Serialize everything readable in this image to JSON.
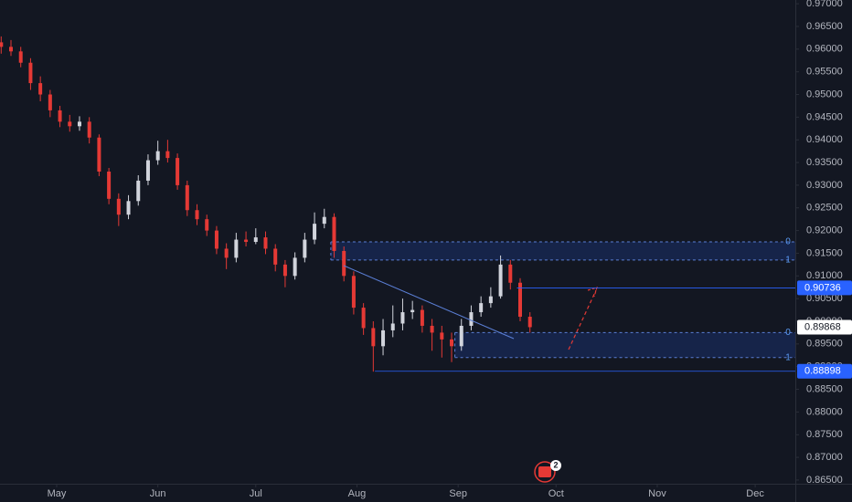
{
  "chart_data": {
    "type": "candlestick",
    "x": [
      0,
      3,
      6,
      9,
      12,
      15,
      18,
      21,
      24,
      27,
      30,
      33,
      36,
      39,
      42,
      45,
      48,
      51,
      54,
      57,
      60,
      63,
      66,
      69,
      72,
      75,
      78,
      81,
      84,
      87,
      90,
      93,
      96,
      99,
      102,
      105,
      108,
      111,
      114,
      117,
      120,
      123,
      126,
      129,
      132,
      135,
      138,
      141,
      144,
      147,
      150,
      153,
      156,
      159,
      162
    ],
    "open": [
      0.9615,
      0.9605,
      0.9595,
      0.957,
      0.9525,
      0.95,
      0.9465,
      0.944,
      0.943,
      0.944,
      0.9405,
      0.933,
      0.927,
      0.9235,
      0.9265,
      0.931,
      0.9355,
      0.9375,
      0.936,
      0.93,
      0.9245,
      0.9225,
      0.92,
      0.916,
      0.914,
      0.918,
      0.9175,
      0.9185,
      0.916,
      0.9125,
      0.91,
      0.914,
      0.918,
      0.9215,
      0.923,
      0.9155,
      0.91,
      0.903,
      0.8985,
      0.8945,
      0.898,
      0.8995,
      0.902,
      0.9025,
      0.899,
      0.8975,
      0.896,
      0.8945,
      0.899,
      0.902,
      0.904,
      0.9055,
      0.9125,
      0.9085,
      0.901
    ],
    "high": [
      0.9628,
      0.962,
      0.9605,
      0.958,
      0.954,
      0.951,
      0.9475,
      0.9455,
      0.9452,
      0.945,
      0.9412,
      0.9338,
      0.9282,
      0.9278,
      0.9322,
      0.9368,
      0.9398,
      0.94,
      0.937,
      0.931,
      0.9258,
      0.9235,
      0.921,
      0.9172,
      0.9195,
      0.9198,
      0.9205,
      0.9198,
      0.917,
      0.9135,
      0.9152,
      0.9195,
      0.924,
      0.9248,
      0.9238,
      0.9165,
      0.911,
      0.904,
      0.9,
      0.9005,
      0.9035,
      0.905,
      0.9045,
      0.9035,
      0.9005,
      0.899,
      0.8975,
      0.9005,
      0.9035,
      0.9055,
      0.9075,
      0.9145,
      0.9135,
      0.9095,
      0.902
    ],
    "low": [
      0.959,
      0.9585,
      0.956,
      0.951,
      0.9485,
      0.945,
      0.9428,
      0.9418,
      0.942,
      0.9392,
      0.932,
      0.9258,
      0.921,
      0.9225,
      0.9255,
      0.93,
      0.9345,
      0.935,
      0.929,
      0.9232,
      0.9212,
      0.9188,
      0.9148,
      0.9115,
      0.913,
      0.9165,
      0.917,
      0.9148,
      0.911,
      0.9075,
      0.9092,
      0.913,
      0.917,
      0.9205,
      0.914,
      0.9088,
      0.9015,
      0.897,
      0.8889,
      0.8925,
      0.8965,
      0.898,
      0.9005,
      0.8975,
      0.8935,
      0.892,
      0.891,
      0.8935,
      0.898,
      0.901,
      0.903,
      0.905,
      0.907,
      0.9,
      0.8975
    ],
    "close": [
      0.9605,
      0.9595,
      0.957,
      0.9525,
      0.95,
      0.9465,
      0.944,
      0.943,
      0.944,
      0.9405,
      0.933,
      0.927,
      0.9235,
      0.9265,
      0.931,
      0.9355,
      0.9375,
      0.936,
      0.93,
      0.9245,
      0.9225,
      0.92,
      0.916,
      0.914,
      0.918,
      0.9175,
      0.9185,
      0.916,
      0.9125,
      0.91,
      0.914,
      0.918,
      0.9215,
      0.923,
      0.9155,
      0.91,
      0.903,
      0.8985,
      0.8945,
      0.898,
      0.8995,
      0.902,
      0.9025,
      0.899,
      0.8975,
      0.896,
      0.8945,
      0.899,
      0.902,
      0.904,
      0.9055,
      0.9125,
      0.9085,
      0.901,
      0.8987
    ],
    "up_color": "#d1d4dc",
    "down_color": "#e53935",
    "xlim": [
      -0.36,
      243.3
    ],
    "xticks": [
      {
        "value": 17,
        "label": "May"
      },
      {
        "value": 48,
        "label": "Jun"
      },
      {
        "value": 78,
        "label": "Jul"
      },
      {
        "value": 109,
        "label": "Aug"
      },
      {
        "value": 140,
        "label": "Sep"
      },
      {
        "value": 170,
        "label": "Oct"
      },
      {
        "value": 201,
        "label": "Nov"
      },
      {
        "value": 231,
        "label": "Dec"
      }
    ],
    "ylim": [
      0.86418,
      0.97083
    ],
    "yticks": [
      {
        "value": 0.865,
        "label": "0.86500"
      },
      {
        "value": 0.87,
        "label": "0.87000"
      },
      {
        "value": 0.875,
        "label": "0.87500"
      },
      {
        "value": 0.88,
        "label": "0.88000"
      },
      {
        "value": 0.885,
        "label": "0.88500"
      },
      {
        "value": 0.89,
        "label": "0.89000"
      },
      {
        "value": 0.895,
        "label": "0.89500"
      },
      {
        "value": 0.9,
        "label": "0.90000"
      },
      {
        "value": 0.905,
        "label": "0.90500"
      },
      {
        "value": 0.91,
        "label": "0.91000"
      },
      {
        "value": 0.915,
        "label": "0.91500"
      },
      {
        "value": 0.92,
        "label": "0.92000"
      },
      {
        "value": 0.925,
        "label": "0.92500"
      },
      {
        "value": 0.93,
        "label": "0.93000"
      },
      {
        "value": 0.935,
        "label": "0.93500"
      },
      {
        "value": 0.94,
        "label": "0.94000"
      },
      {
        "value": 0.945,
        "label": "0.94500"
      },
      {
        "value": 0.95,
        "label": "0.95000"
      },
      {
        "value": 0.955,
        "label": "0.95500"
      },
      {
        "value": 0.96,
        "label": "0.96000"
      },
      {
        "value": 0.965,
        "label": "0.96500"
      },
      {
        "value": 0.97,
        "label": "0.97000"
      }
    ],
    "grid": false,
    "zones": [
      {
        "start": 101,
        "top": 0.9175,
        "bottom": 0.9135,
        "top_label": "0",
        "bottom_label": "1"
      },
      {
        "start": 139,
        "top": 0.8975,
        "bottom": 0.892,
        "top_label": "0",
        "bottom_label": "1"
      }
    ],
    "price_labels": [
      {
        "start": 158,
        "value": 0.90736,
        "label": "0.90736",
        "color": "#2962ff"
      },
      {
        "start": 114.5,
        "value": 0.88898,
        "label": "0.88898",
        "color": "#2962ff"
      },
      {
        "value": 0.89868,
        "label": "0.89868",
        "color": "#ffffff"
      }
    ],
    "event_badge": "2"
  }
}
